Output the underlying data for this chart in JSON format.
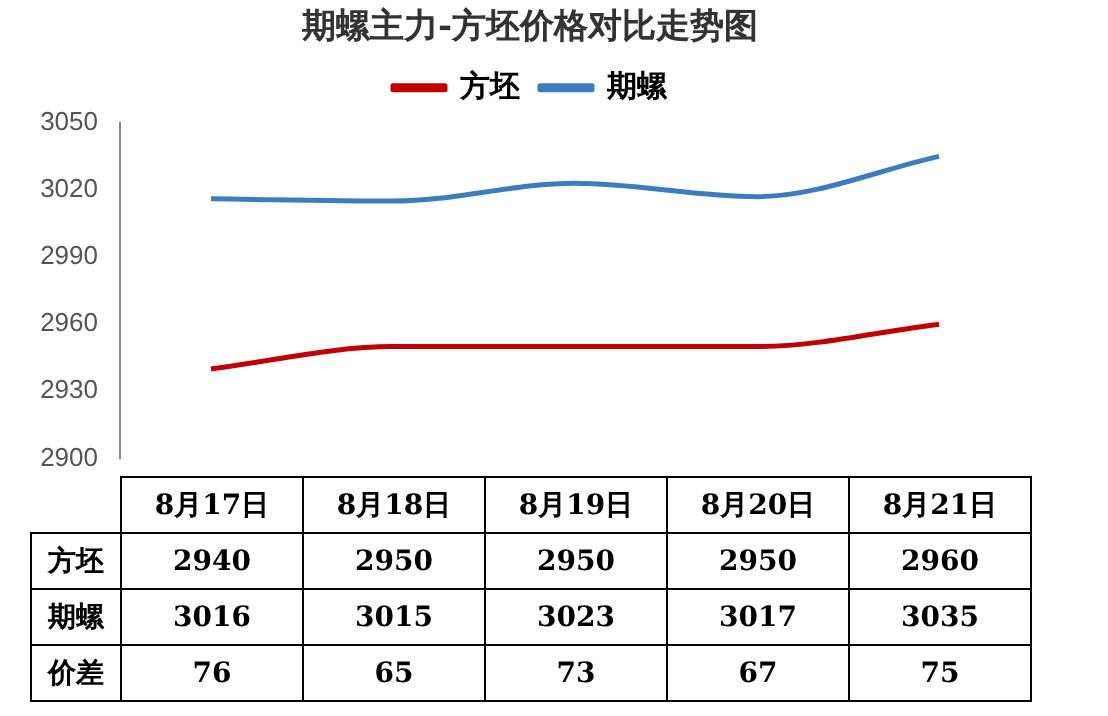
{
  "chart_data": {
    "type": "line",
    "title": "期螺主力-方坯价格对比走势图",
    "categories": [
      "8月17日",
      "8月18日",
      "8月19日",
      "8月20日",
      "8月21日"
    ],
    "series": [
      {
        "name": "方坯",
        "color": "#c00000",
        "values": [
          2940,
          2950,
          2950,
          2950,
          2960
        ]
      },
      {
        "name": "期螺",
        "color": "#3c7dbf",
        "values": [
          3016,
          3015,
          3023,
          3017,
          3035
        ]
      }
    ],
    "ylim": [
      2900,
      3050
    ],
    "yticks": [
      2900,
      2930,
      2960,
      2990,
      3020,
      3050
    ],
    "grid": false,
    "legend": "top",
    "marker": "none",
    "line_style": "solid",
    "data_labels": true,
    "annotations": [
      "价差",
      "76",
      "65",
      "73",
      "67",
      "75"
    ]
  }
}
